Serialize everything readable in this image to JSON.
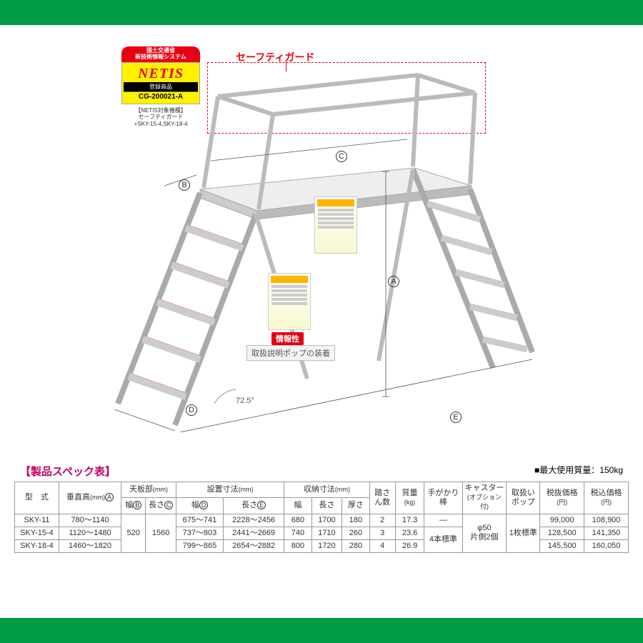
{
  "bars": {
    "color": "#009944"
  },
  "netis": {
    "line1": "国土交通省",
    "line2": "新技術情報システム",
    "name": "NETIS",
    "sub": "登録商品",
    "code": "CG-200021-A",
    "note1": "【NETIS対象機種】",
    "note2": "セーフティガード",
    "note3": "+SKY-15-4,SKY-18-4"
  },
  "callouts": {
    "safety_guard": "セーフティガード",
    "info_tag": "情報性",
    "info_label": "取扱説明ポップの装着",
    "angle": "72.5°",
    "A": "A",
    "B": "B",
    "C": "C",
    "D": "D",
    "E": "E"
  },
  "spec": {
    "title": "【製品スペック表】",
    "max_load": "■最大使用質量：150kg",
    "headers": {
      "model": "型　式",
      "height": "垂直高",
      "height_unit": "(mm)",
      "height_mark": "A",
      "board": "天板部",
      "board_unit": "(mm)",
      "board_w": "幅",
      "board_w_mark": "B",
      "board_l": "長さ",
      "board_l_mark": "C",
      "install": "設置寸法",
      "install_unit": "(mm)",
      "install_w": "幅",
      "install_w_mark": "D",
      "install_l": "長さ",
      "install_l_mark": "E",
      "storage": "収納寸法",
      "storage_unit": "(mm)",
      "storage_w": "幅",
      "storage_l": "長さ",
      "storage_t": "厚さ",
      "steps": "踏さん数",
      "mass": "質量",
      "mass_unit": "(kg)",
      "handrail": "手がかり棒",
      "caster": "キャスター",
      "caster_sub": "(オプション付)",
      "popup": "取扱いポップ",
      "price_ex": "税抜価格",
      "price_in": "税込価格",
      "yen": "(円)"
    },
    "shared": {
      "board_w": "520",
      "board_l": "1560",
      "caster": "φ50\n片側2個",
      "popup": "1枚標準"
    },
    "rows": [
      {
        "model": "SKY-11",
        "height": "780～1140",
        "install_w": "675～741",
        "install_l": "2228～2456",
        "storage_w": "680",
        "storage_l": "1700",
        "storage_t": "180",
        "steps": "2",
        "mass": "17.3",
        "handrail": "―",
        "price_ex": "99,000",
        "price_in": "108,900"
      },
      {
        "model": "SKY-15-4",
        "height": "1120～1480",
        "install_w": "737～803",
        "install_l": "2441～2669",
        "storage_w": "740",
        "storage_l": "1710",
        "storage_t": "260",
        "steps": "3",
        "mass": "23.6",
        "handrail": "4本標準",
        "price_ex": "128,500",
        "price_in": "141,350"
      },
      {
        "model": "SKY-18-4",
        "height": "1460～1820",
        "install_w": "799～865",
        "install_l": "2654～2882",
        "storage_w": "800",
        "storage_l": "1720",
        "storage_t": "280",
        "steps": "4",
        "mass": "26.9",
        "handrail": "",
        "price_ex": "145,500",
        "price_in": "160,050"
      }
    ]
  }
}
